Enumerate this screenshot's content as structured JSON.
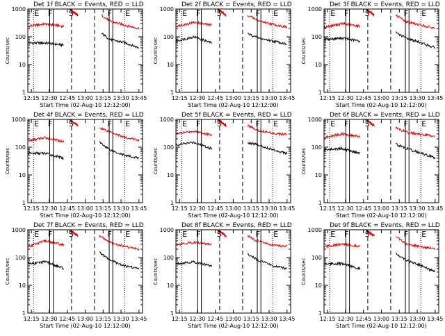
{
  "colors": {
    "events": "#000000",
    "lld": "#e00000",
    "background": "#ffffff",
    "axes": "#000000"
  },
  "chart_data": [
    {
      "type": "line",
      "title": "Det 1f BLACK = Events, RED = LLD",
      "xlabel": "Start Time (02-Aug-10 12:12:00)",
      "ylabel": "Counts/sec",
      "yscale": "log",
      "ylim": [
        1,
        1000
      ],
      "xtick_labels": [
        "12:15",
        "12:30",
        "12:45",
        "13:00",
        "13:15",
        "13:30",
        "13:45"
      ],
      "ytick_labels": [
        "1",
        "10",
        "100",
        "1000"
      ],
      "markers": {
        "E": [
          12.28,
          13.55
        ],
        "F": [
          12.53,
          13.36
        ],
        "S": [
          12.81
        ]
      },
      "segments": [
        {
          "x": [
            12.2,
            12.45,
            12.7
          ],
          "events": [
            60,
            60,
            50
          ],
          "lld": [
            240,
            290,
            240
          ]
        },
        {
          "x": [
            12.78,
            12.9
          ],
          "lld": [
            1000,
            600
          ]
        },
        {
          "x": [
            13.23,
            13.35,
            13.56,
            13.75
          ],
          "events": [
            130,
            80,
            60,
            40
          ],
          "lld": [
            600,
            360,
            260,
            200
          ]
        }
      ]
    },
    {
      "type": "line",
      "title": "Det 2f BLACK = Events, RED = LLD",
      "xlabel": "Start Time (02-Aug-10 12:12:00)",
      "ylabel": "Counts/sec",
      "yscale": "log",
      "ylim": [
        1,
        1000
      ],
      "xtick_labels": [
        "12:15",
        "12:30",
        "12:45",
        "13:00",
        "13:15",
        "13:30",
        "13:45"
      ],
      "ytick_labels": [
        "1",
        "10",
        "100",
        "1000"
      ],
      "markers": {
        "E": [
          12.28,
          13.55
        ],
        "F": [
          12.53,
          13.36
        ],
        "S": [
          12.81
        ]
      },
      "segments": [
        {
          "x": [
            12.2,
            12.45,
            12.7
          ],
          "events": [
            70,
            100,
            60
          ],
          "lld": [
            240,
            330,
            260
          ]
        },
        {
          "x": [
            12.78,
            12.9
          ],
          "lld": [
            1000,
            600
          ]
        },
        {
          "x": [
            13.2,
            13.35,
            13.56,
            13.75
          ],
          "events": [
            130,
            90,
            70,
            55
          ],
          "lld": [
            600,
            380,
            280,
            220
          ]
        }
      ]
    },
    {
      "type": "line",
      "title": "Det 3f BLACK = Events, RED = LLD",
      "xlabel": "Start Time (02-Aug-10 12:12:00)",
      "ylabel": "Counts/sec",
      "yscale": "log",
      "ylim": [
        1,
        1000
      ],
      "xtick_labels": [
        "12:15",
        "12:30",
        "12:45",
        "13:00",
        "13:15",
        "13:30",
        "13:45"
      ],
      "ytick_labels": [
        "1",
        "10",
        "100",
        "1000"
      ],
      "markers": {
        "E": [
          12.28,
          13.55
        ],
        "F": [
          12.53,
          13.36
        ],
        "S": [
          12.81
        ]
      },
      "segments": [
        {
          "x": [
            12.2,
            12.45,
            12.7
          ],
          "events": [
            80,
            90,
            70
          ],
          "lld": [
            220,
            300,
            240
          ]
        },
        {
          "x": [
            12.78,
            12.9
          ],
          "lld": [
            1000,
            600
          ]
        },
        {
          "x": [
            13.2,
            13.35,
            13.56,
            13.75
          ],
          "events": [
            140,
            90,
            60,
            40
          ],
          "lld": [
            600,
            350,
            260,
            200
          ]
        }
      ]
    },
    {
      "type": "line",
      "title": "Det 4f BLACK = Events, RED = LLD",
      "xlabel": "Start Time (02-Aug-10 12:12:00)",
      "ylabel": "Counts/sec",
      "yscale": "log",
      "ylim": [
        1,
        1000
      ],
      "xtick_labels": [
        "12:15",
        "12:30",
        "12:45",
        "13:00",
        "13:15",
        "13:30",
        "13:45"
      ],
      "ytick_labels": [
        "1",
        "10",
        "100",
        "1000"
      ],
      "markers": {
        "E": [
          12.28,
          13.55
        ],
        "F": [
          12.53,
          13.36
        ],
        "S": [
          12.81
        ]
      },
      "segments": [
        {
          "x": [
            12.2,
            12.45,
            12.7
          ],
          "events": [
            60,
            60,
            40
          ],
          "lld": [
            170,
            220,
            160
          ]
        },
        {
          "x": [
            12.78,
            12.9
          ],
          "lld": [
            1000,
            600
          ]
        },
        {
          "x": [
            13.2,
            13.35,
            13.56,
            13.75
          ],
          "events": [
            150,
            80,
            50,
            40
          ],
          "lld": [
            500,
            360,
            220,
            180
          ]
        }
      ]
    },
    {
      "type": "line",
      "title": "Det 5f BLACK = Events, RED = LLD",
      "xlabel": "Start Time (02-Aug-10 12:12:00)",
      "ylabel": "Counts/sec",
      "yscale": "log",
      "ylim": [
        1,
        1000
      ],
      "xtick_labels": [
        "12:15",
        "12:30",
        "12:45",
        "13:00",
        "13:15",
        "13:30",
        "13:45"
      ],
      "ytick_labels": [
        "1",
        "10",
        "100",
        "1000"
      ],
      "markers": {
        "E": [
          12.28,
          13.55
        ],
        "F": [
          12.53,
          13.36
        ],
        "S": [
          12.81
        ]
      },
      "segments": [
        {
          "x": [
            12.2,
            12.45,
            12.7
          ],
          "events": [
            120,
            150,
            90
          ],
          "lld": [
            300,
            380,
            280
          ]
        },
        {
          "x": [
            12.78,
            12.9
          ],
          "lld": [
            1000,
            600
          ]
        },
        {
          "x": [
            13.2,
            13.35,
            13.56,
            13.75
          ],
          "events": [
            150,
            120,
            80,
            60
          ],
          "lld": [
            600,
            400,
            320,
            280
          ]
        }
      ]
    },
    {
      "type": "line",
      "title": "Det 6f BLACK = Events, RED = LLD",
      "xlabel": "Start Time (02-Aug-10 12:12:00)",
      "ylabel": "Counts/sec",
      "yscale": "log",
      "ylim": [
        1,
        1000
      ],
      "xtick_labels": [
        "12:15",
        "12:30",
        "12:45",
        "13:00",
        "13:15",
        "13:30",
        "13:45"
      ],
      "ytick_labels": [
        "1",
        "10",
        "100",
        "1000"
      ],
      "markers": {
        "E": [
          12.28,
          13.55
        ],
        "F": [
          12.53,
          13.36
        ],
        "S": [
          12.81
        ]
      },
      "segments": [
        {
          "x": [
            12.2,
            12.45,
            12.7
          ],
          "events": [
            80,
            90,
            60
          ],
          "lld": [
            220,
            300,
            240
          ]
        },
        {
          "x": [
            12.78,
            12.9
          ],
          "lld": [
            1000,
            600
          ]
        },
        {
          "x": [
            13.2,
            13.35,
            13.56,
            13.75
          ],
          "events": [
            130,
            90,
            60,
            40
          ],
          "lld": [
            500,
            350,
            280,
            250
          ]
        }
      ]
    },
    {
      "type": "line",
      "title": "Det 7f BLACK = Events, RED = LLD",
      "xlabel": "Start Time (02-Aug-10 12:12:00)",
      "ylabel": "Counts/sec",
      "yscale": "log",
      "ylim": [
        1,
        1000
      ],
      "xtick_labels": [
        "12:15",
        "12:30",
        "12:45",
        "13:00",
        "13:15",
        "13:30",
        "13:45"
      ],
      "ytick_labels": [
        "1",
        "10",
        "100",
        "1000"
      ],
      "markers": {
        "E": [
          12.28,
          13.55
        ],
        "F": [
          12.53,
          13.36
        ],
        "S": [
          12.81
        ]
      },
      "segments": [
        {
          "x": [
            12.2,
            12.45,
            12.7
          ],
          "events": [
            60,
            70,
            40
          ],
          "lld": [
            250,
            400,
            280
          ]
        },
        {
          "x": [
            12.78,
            12.9
          ],
          "lld": [
            1000,
            600
          ]
        },
        {
          "x": [
            13.2,
            13.35,
            13.56,
            13.75
          ],
          "events": [
            150,
            80,
            50,
            40
          ],
          "lld": [
            600,
            350,
            250,
            200
          ]
        }
      ]
    },
    {
      "type": "line",
      "title": "Det 8f BLACK = Events, RED = LLD",
      "xlabel": "Start Time (02-Aug-10 12:12:00)",
      "ylabel": "Counts/sec",
      "yscale": "log",
      "ylim": [
        1,
        1000
      ],
      "xtick_labels": [
        "12:15",
        "12:30",
        "12:45",
        "13:00",
        "13:15",
        "13:30",
        "13:45"
      ],
      "ytick_labels": [
        "1",
        "10",
        "100",
        "1000"
      ],
      "markers": {
        "E": [
          12.28,
          13.55
        ],
        "F": [
          12.53,
          13.36
        ],
        "S": [
          12.81
        ]
      },
      "segments": [
        {
          "x": [
            12.2,
            12.45,
            12.7
          ],
          "events": [
            60,
            70,
            50
          ],
          "lld": [
            300,
            350,
            300
          ]
        },
        {
          "x": [
            12.78,
            12.9
          ],
          "lld": [
            1000,
            600
          ]
        },
        {
          "x": [
            13.2,
            13.35,
            13.56,
            13.75
          ],
          "events": [
            130,
            80,
            50,
            40
          ],
          "lld": [
            600,
            380,
            280,
            250
          ]
        }
      ]
    },
    {
      "type": "line",
      "title": "Det 9f BLACK = Events, RED = LLD",
      "xlabel": "Start Time (02-Aug-10 12:12:00)",
      "ylabel": "Counts/sec",
      "yscale": "log",
      "ylim": [
        1,
        1000
      ],
      "xtick_labels": [
        "12:15",
        "12:30",
        "12:45",
        "13:00",
        "13:15",
        "13:30",
        "13:45"
      ],
      "ytick_labels": [
        "1",
        "10",
        "100",
        "1000"
      ],
      "markers": {
        "E": [
          12.28,
          13.55
        ],
        "F": [
          12.53,
          13.36
        ],
        "S": [
          12.81
        ]
      },
      "segments": [
        {
          "x": [
            12.2,
            12.45,
            12.7
          ],
          "events": [
            60,
            60,
            40
          ],
          "lld": [
            250,
            300,
            260
          ]
        },
        {
          "x": [
            12.78,
            12.9
          ],
          "lld": [
            1000,
            600
          ]
        },
        {
          "x": [
            13.2,
            13.35,
            13.56,
            13.75
          ],
          "events": [
            140,
            80,
            50,
            30
          ],
          "lld": [
            600,
            300,
            240,
            200
          ]
        }
      ]
    }
  ]
}
